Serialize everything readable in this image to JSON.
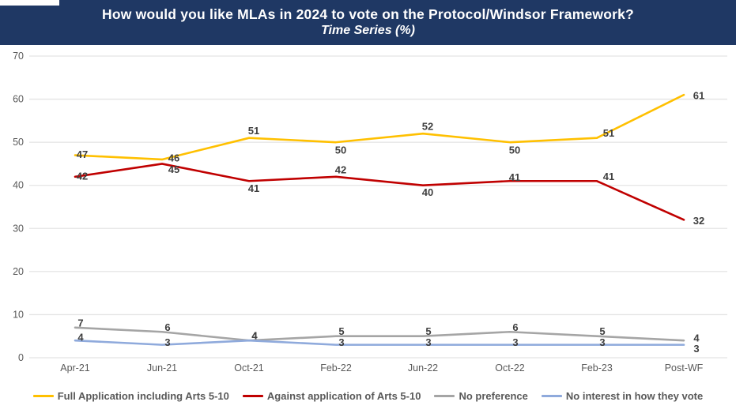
{
  "header": {
    "title": "How would you like MLAs in 2024 to vote on the Protocol/Windsor Framework?",
    "subtitle": "Time Series (%)",
    "background": "#1F3864",
    "text_color": "#FFFFFF"
  },
  "chart_data": {
    "type": "line",
    "title": "How would you like MLAs in 2024 to vote on the Protocol/Windsor Framework? Time Series (%)",
    "xlabel": "",
    "ylabel": "",
    "categories": [
      "Apr-21",
      "Jun-21",
      "Oct-21",
      "Feb-22",
      "Jun-22",
      "Oct-22",
      "Feb-23",
      "Post-WF"
    ],
    "series": [
      {
        "name": "Full Application including Arts 5-10",
        "color": "#FFC000",
        "values": [
          47,
          46,
          51,
          50,
          52,
          50,
          51,
          61
        ],
        "label_offsets": [
          [
            9,
            -1
          ],
          [
            15,
            -2
          ],
          [
            6,
            -9
          ],
          [
            6,
            10
          ],
          [
            6,
            -9
          ],
          [
            6,
            10
          ],
          [
            15,
            -6
          ],
          [
            19,
            1
          ]
        ]
      },
      {
        "name": "Against application of Arts 5-10",
        "color": "#C00000",
        "values": [
          42,
          45,
          41,
          42,
          40,
          41,
          41,
          32
        ],
        "label_offsets": [
          [
            9,
            -1
          ],
          [
            15,
            7
          ],
          [
            6,
            9
          ],
          [
            6,
            -9
          ],
          [
            6,
            9
          ],
          [
            6,
            -5
          ],
          [
            15,
            -6
          ],
          [
            19,
            1
          ]
        ]
      },
      {
        "name": "No preference",
        "color": "#A5A5A5",
        "values": [
          7,
          6,
          4,
          5,
          5,
          6,
          5,
          4
        ],
        "label_offsets": [
          [
            7,
            -6
          ],
          [
            7,
            -6
          ],
          [
            7,
            -6
          ],
          [
            7,
            -6
          ],
          [
            7,
            -6
          ],
          [
            7,
            -6
          ],
          [
            7,
            -6
          ],
          [
            16,
            -3
          ]
        ]
      },
      {
        "name": "No interest in how they vote",
        "color": "#8FAADC",
        "values": [
          4,
          3,
          4,
          3,
          3,
          3,
          3,
          3
        ],
        "label_offsets": [
          [
            7,
            -4
          ],
          [
            7,
            -3
          ],
          [
            7,
            -6
          ],
          [
            7,
            -3
          ],
          [
            7,
            -3
          ],
          [
            7,
            -3
          ],
          [
            7,
            -3
          ],
          [
            16,
            5
          ]
        ]
      }
    ],
    "ylim": [
      0,
      70
    ],
    "yticks": [
      0,
      10,
      20,
      30,
      40,
      50,
      60,
      70
    ],
    "grid": true,
    "legend_position": "bottom",
    "colors": {
      "gridline": "#E4E4E4",
      "axis_text": "#595959",
      "data_label": "#3F3F3F"
    }
  }
}
